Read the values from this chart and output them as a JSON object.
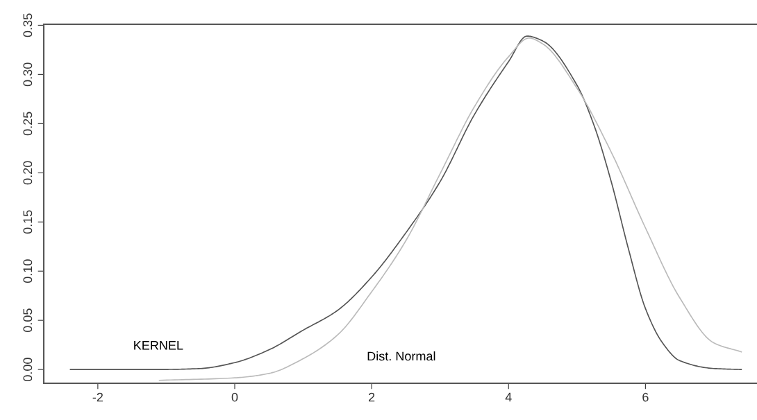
{
  "chart_data": {
    "type": "line",
    "xlim": [
      -2.79,
      7.66
    ],
    "ylim": [
      -0.014,
      0.351
    ],
    "xticks": [
      -2,
      0,
      2,
      4,
      6
    ],
    "yticks": [
      {
        "value": 0,
        "label": "0.00"
      },
      {
        "value": 0.05,
        "label": "0.05"
      },
      {
        "value": 0.1,
        "label": "0.10"
      },
      {
        "value": 0.15,
        "label": "0.15"
      },
      {
        "value": 0.2,
        "label": "0.20"
      },
      {
        "value": 0.25,
        "label": "0.25"
      },
      {
        "value": 0.3,
        "label": "0.30"
      },
      {
        "value": 0.35,
        "label": "0.35"
      }
    ],
    "grid": false,
    "marker": "none",
    "line_style": "solid",
    "series": [
      {
        "name": "KERNEL",
        "color": "#555555",
        "x": [
          -2.4,
          -1.1,
          -0.5,
          0,
          0.5,
          1,
          1.5,
          2,
          2.5,
          3,
          3.5,
          4,
          4.27,
          4.5,
          5,
          5.25,
          5.5,
          5.75,
          6,
          6.25,
          6.5,
          7,
          7.4
        ],
        "values": [
          0,
          0,
          0.001,
          0.007,
          0.02,
          0.04,
          0.06,
          0.094,
          0.139,
          0.191,
          0.259,
          0.313,
          0.339,
          0.334,
          0.289,
          0.248,
          0.191,
          0.123,
          0.062,
          0.027,
          0.009,
          0.001,
          0
        ]
      },
      {
        "name": "Dist. Normal",
        "color": "#bbbbbb",
        "x": [
          -1.1,
          0,
          0.5,
          1,
          1.5,
          2,
          2.5,
          3,
          3.5,
          4,
          4.3,
          4.5,
          5,
          5.5,
          6,
          6.5,
          7,
          7.4
        ],
        "values": [
          -0.011,
          -0.0085,
          -0.004,
          0.011,
          0.035,
          0.079,
          0.131,
          0.199,
          0.267,
          0.318,
          0.337,
          0.331,
          0.286,
          0.221,
          0.144,
          0.073,
          0.027,
          0.018
        ]
      }
    ]
  }
}
